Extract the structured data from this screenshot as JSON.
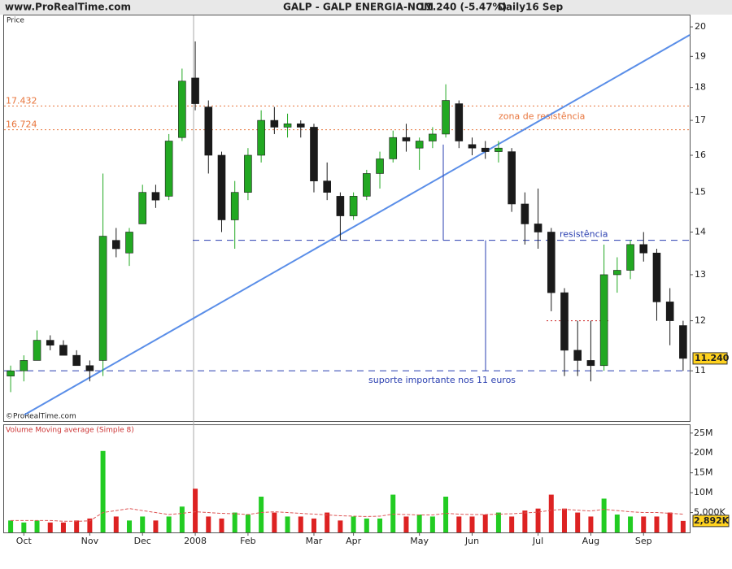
{
  "chart_data": {
    "type": "candlestick",
    "site": "www.ProRealTime.com",
    "title": "GALP - GALP ENERGIA-NOM",
    "last_quote": "11.240 (-5.47%)",
    "period": "Daily",
    "date": "16 Sep",
    "price_label": "Price",
    "copyright": "©ProRealTime.com",
    "categories": [
      null,
      "Oct",
      null,
      null,
      null,
      null,
      "Nov",
      null,
      null,
      null,
      "Dec",
      null,
      null,
      null,
      "2008",
      null,
      null,
      null,
      "Feb",
      null,
      null,
      null,
      null,
      "Mar",
      null,
      null,
      "Apr",
      null,
      null,
      null,
      null,
      "May",
      null,
      null,
      null,
      "Jun",
      null,
      null,
      null,
      null,
      "Jul",
      null,
      null,
      null,
      "Aug",
      null,
      null,
      null,
      "Sep",
      null,
      null,
      null
    ],
    "open": [
      10.9,
      11.0,
      11.2,
      11.6,
      11.5,
      11.3,
      11.1,
      11.2,
      13.8,
      13.5,
      14.2,
      15.0,
      14.9,
      16.5,
      18.3,
      17.4,
      16.0,
      14.3,
      15.0,
      16.0,
      17.0,
      16.8,
      16.9,
      16.8,
      15.3,
      14.9,
      14.4,
      14.9,
      15.5,
      15.9,
      16.5,
      16.2,
      16.4,
      16.6,
      17.5,
      16.3,
      16.2,
      16.1,
      16.1,
      14.7,
      14.2,
      14.0,
      12.6,
      11.4,
      11.2,
      11.1,
      13.0,
      13.1,
      13.7,
      13.5,
      12.4,
      11.9
    ],
    "high": [
      11.1,
      11.3,
      11.8,
      11.7,
      11.6,
      11.4,
      11.2,
      15.5,
      14.1,
      14.1,
      15.2,
      15.2,
      16.6,
      18.6,
      19.5,
      17.6,
      16.1,
      15.3,
      16.2,
      17.3,
      17.4,
      17.2,
      17.0,
      16.9,
      15.8,
      15.0,
      15.0,
      15.6,
      16.1,
      16.7,
      16.9,
      16.5,
      16.8,
      18.1,
      17.6,
      16.5,
      16.4,
      16.4,
      16.2,
      15.0,
      15.1,
      14.1,
      12.7,
      12.0,
      12.0,
      13.7,
      13.4,
      13.8,
      14.0,
      13.6,
      12.7,
      12.0
    ],
    "low": [
      10.6,
      10.8,
      11.2,
      11.4,
      11.3,
      11.1,
      10.8,
      10.9,
      13.4,
      13.2,
      14.2,
      14.6,
      14.8,
      16.4,
      17.3,
      15.5,
      14.0,
      13.6,
      14.8,
      15.8,
      16.6,
      16.5,
      16.5,
      15.0,
      14.8,
      13.8,
      14.3,
      14.8,
      15.1,
      15.8,
      16.1,
      15.6,
      16.2,
      16.5,
      16.2,
      16.0,
      15.9,
      15.8,
      14.5,
      13.7,
      13.6,
      12.2,
      10.9,
      10.9,
      10.8,
      11.0,
      12.6,
      12.9,
      13.3,
      12.0,
      11.5,
      11.0
    ],
    "close": [
      11.0,
      11.2,
      11.6,
      11.5,
      11.3,
      11.1,
      11.0,
      13.9,
      13.6,
      14.0,
      15.0,
      14.8,
      16.4,
      18.2,
      17.5,
      16.0,
      14.3,
      15.0,
      16.0,
      17.0,
      16.8,
      16.9,
      16.8,
      15.3,
      15.0,
      14.4,
      14.9,
      15.5,
      15.9,
      16.5,
      16.4,
      16.4,
      16.6,
      17.6,
      16.4,
      16.2,
      16.1,
      16.2,
      14.7,
      14.2,
      14.0,
      12.6,
      11.4,
      11.2,
      11.1,
      13.0,
      13.1,
      13.7,
      13.5,
      12.4,
      12.0,
      11.24
    ],
    "up_color": "#22a822",
    "down_color": "#1a1a1a",
    "log_scale": true,
    "ylim": [
      10.08,
      20.43
    ],
    "yticks": [
      11,
      12,
      13,
      14,
      15,
      16,
      17,
      18,
      19,
      20
    ],
    "last_price": {
      "value": 11.24,
      "label": "11.240"
    },
    "levels": [
      {
        "value": 17.432,
        "label": "17.432",
        "color": "#e8743b"
      },
      {
        "value": 16.724,
        "label": "16.724",
        "color": "#e8743b"
      },
      {
        "value": 13.8,
        "label": "resistência",
        "color": "#2a3fb0"
      },
      {
        "value": 11.0,
        "label": "suporte importante nos 11 euros",
        "color": "#2a3fb0"
      },
      {
        "value": 12.0,
        "color": "#cc2222"
      }
    ],
    "zone_label": "zona de resistência",
    "trendline": {
      "values": [
        10.19,
        19.72
      ],
      "color": "#5a8ee8"
    },
    "measures": [
      {
        "values": [
          16.3,
          13.8
        ]
      },
      {
        "values": [
          13.8,
          11.0
        ]
      }
    ],
    "volume": {
      "title": "Volume Moving average (Simple 8)",
      "values": [
        3,
        2.5,
        3,
        2.5,
        2.5,
        3,
        3.5,
        20.5,
        4,
        3,
        4,
        3,
        4,
        6.5,
        11,
        4,
        3.5,
        5,
        4.5,
        9,
        5,
        4,
        4,
        3.5,
        5,
        3,
        4,
        3.5,
        3.5,
        9.5,
        4,
        4.5,
        4,
        9,
        4,
        4,
        4.5,
        5,
        4,
        5.5,
        6,
        9.5,
        6,
        5,
        4,
        8.5,
        4.5,
        4,
        4,
        4,
        5,
        2.892
      ],
      "ma": [
        3,
        3,
        3,
        3,
        2.8,
        2.8,
        2.9,
        5,
        5.5,
        6,
        5.5,
        5,
        4.5,
        4.8,
        5.2,
        5,
        4.8,
        4.7,
        4.5,
        5,
        5.2,
        5,
        4.8,
        4.6,
        4.4,
        4.2,
        4.1,
        4,
        4.1,
        4.6,
        4.5,
        4.4,
        4.4,
        4.8,
        4.6,
        4.5,
        4.5,
        4.6,
        4.7,
        4.9,
        5.1,
        5.6,
        5.8,
        5.6,
        5.4,
        5.8,
        5.5,
        5.2,
        5,
        5,
        4.8,
        4.6
      ],
      "ma_color": "#dd5555",
      "up_color": "#22cc22",
      "down_color": "#dd2222",
      "ylim": [
        0,
        27
      ],
      "yticks": [
        {
          "value": 5,
          "label": "5,000K"
        },
        {
          "value": 10,
          "label": "10M"
        },
        {
          "value": 15,
          "label": "15M"
        },
        {
          "value": 20,
          "label": "20M"
        },
        {
          "value": 25,
          "label": "25M"
        }
      ],
      "last": {
        "value": 2.892,
        "label": "2,892K"
      }
    }
  }
}
